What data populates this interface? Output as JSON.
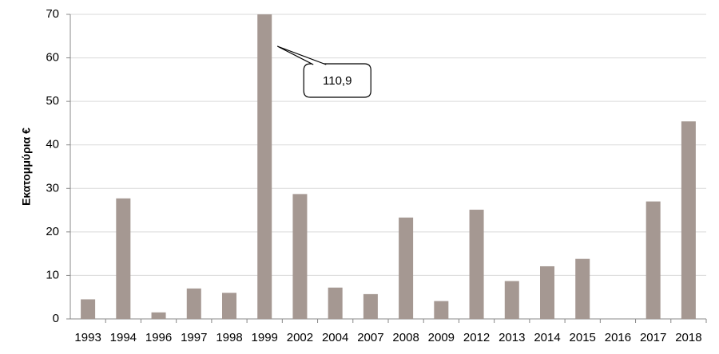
{
  "chart_data": {
    "type": "bar",
    "y_label": "Εκατομμύρια €",
    "categories": [
      "1993",
      "1994",
      "1996",
      "1997",
      "1998",
      "1999",
      "2002",
      "2004",
      "2007",
      "2008",
      "2009",
      "2012",
      "2013",
      "2014",
      "2015",
      "2016",
      "2017",
      "2018"
    ],
    "values": [
      4.5,
      27.7,
      1.5,
      7,
      6,
      110.9,
      28.7,
      7.2,
      5.7,
      23.3,
      4.1,
      25.1,
      8.7,
      12.1,
      13.8,
      0,
      27,
      45.4
    ],
    "value_labels": [
      null,
      null,
      null,
      null,
      null,
      "110,9",
      null,
      null,
      null,
      null,
      null,
      null,
      null,
      null,
      null,
      null,
      null,
      null
    ],
    "color": "#a59892",
    "ylim": [
      0,
      70
    ],
    "yticks": [
      0,
      10,
      20,
      30,
      40,
      50,
      60,
      70
    ],
    "grid": true
  }
}
